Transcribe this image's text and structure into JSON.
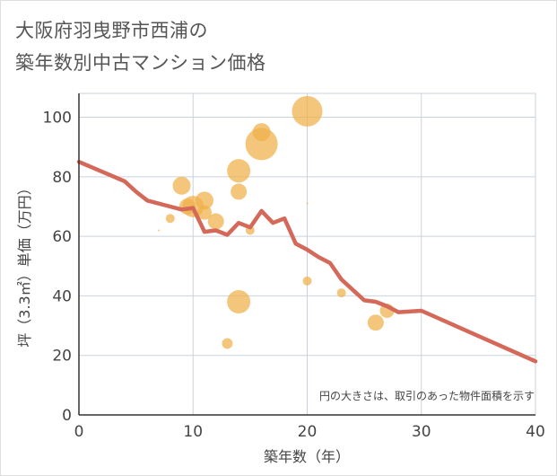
{
  "header": {
    "title_line1": "大阪府羽曳野市西浦の",
    "title_line2": "築年数別中古マンション価格"
  },
  "chart_data": {
    "type": "scatter",
    "title": "大阪府羽曳野市西浦の築年数別中古マンション価格",
    "xlabel": "築年数（年）",
    "ylabel": "坪（3.3㎡）単価（万円）",
    "xlim": [
      0,
      40
    ],
    "ylim": [
      0,
      108
    ],
    "x_ticks": [
      0,
      10,
      20,
      30,
      40
    ],
    "y_ticks": [
      0,
      20,
      40,
      60,
      80,
      100
    ],
    "grid": true,
    "note": "円の大きさは、取引のあった物件面積を示す",
    "colors": {
      "bubble": "#f0b04a",
      "line": "#d4695a",
      "grid": "#c9d3de",
      "axis": "#333333"
    },
    "bubbles": [
      {
        "x": 7,
        "y": 62,
        "size": 1
      },
      {
        "x": 8,
        "y": 66,
        "size": 5
      },
      {
        "x": 9,
        "y": 77,
        "size": 10
      },
      {
        "x": 9.5,
        "y": 70,
        "size": 9
      },
      {
        "x": 10,
        "y": 70,
        "size": 12
      },
      {
        "x": 11,
        "y": 72,
        "size": 10
      },
      {
        "x": 11,
        "y": 68,
        "size": 8
      },
      {
        "x": 12,
        "y": 65,
        "size": 9
      },
      {
        "x": 13,
        "y": 24,
        "size": 6
      },
      {
        "x": 14,
        "y": 82,
        "size": 13
      },
      {
        "x": 14,
        "y": 75,
        "size": 9
      },
      {
        "x": 14,
        "y": 38,
        "size": 13
      },
      {
        "x": 15,
        "y": 62,
        "size": 5
      },
      {
        "x": 16,
        "y": 95,
        "size": 10
      },
      {
        "x": 16,
        "y": 91,
        "size": 18
      },
      {
        "x": 20,
        "y": 102,
        "size": 17
      },
      {
        "x": 20,
        "y": 71,
        "size": 1
      },
      {
        "x": 20,
        "y": 45,
        "size": 5
      },
      {
        "x": 23,
        "y": 41,
        "size": 5
      },
      {
        "x": 26,
        "y": 31,
        "size": 9
      },
      {
        "x": 27,
        "y": 35,
        "size": 8
      }
    ],
    "line": {
      "x": [
        0,
        4,
        5,
        6,
        8,
        9,
        10,
        11,
        12,
        13,
        14,
        15,
        16,
        17,
        18,
        19,
        20,
        21,
        22,
        23,
        24,
        25,
        26,
        27,
        28,
        30,
        40
      ],
      "y": [
        85,
        78.5,
        75,
        72,
        70,
        69,
        69.5,
        61.5,
        62,
        60.5,
        64.5,
        63,
        68.5,
        64.5,
        66,
        57.5,
        55.5,
        53,
        51,
        45.5,
        42,
        38.5,
        38,
        36.5,
        34.5,
        35,
        18
      ]
    }
  }
}
